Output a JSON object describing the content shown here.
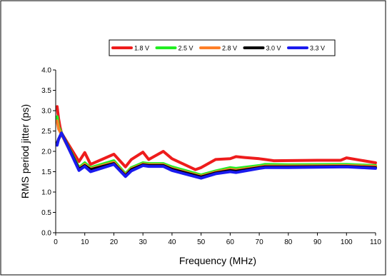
{
  "chart_data": {
    "type": "line",
    "title": "",
    "xlabel": "Frequency (MHz)",
    "ylabel": "RMS period jitter (ps)",
    "xlim": [
      0,
      110
    ],
    "ylim": [
      0.0,
      4.0
    ],
    "xticks": [
      0,
      10,
      20,
      30,
      40,
      50,
      60,
      70,
      80,
      90,
      100,
      110
    ],
    "yticks": [
      "0.0",
      "0.5",
      "1.0",
      "1.5",
      "2.0",
      "2.5",
      "3.0",
      "3.5",
      "4.0"
    ],
    "grid": false,
    "legend_position": "top",
    "series": [
      {
        "name": "1.8 V",
        "color": "#ee1c1c",
        "x": [
          0.5,
          1,
          1.5,
          2,
          8,
          10,
          12,
          20,
          24,
          26,
          30,
          32,
          37,
          40,
          48,
          50,
          55,
          60,
          62,
          65,
          70,
          72,
          75,
          90,
          98,
          100,
          110
        ],
        "y": [
          3.1,
          2.8,
          2.6,
          2.45,
          1.75,
          1.97,
          1.68,
          1.93,
          1.62,
          1.8,
          1.98,
          1.8,
          2.0,
          1.82,
          1.55,
          1.6,
          1.8,
          1.82,
          1.87,
          1.85,
          1.82,
          1.8,
          1.77,
          1.78,
          1.78,
          1.84,
          1.72
        ]
      },
      {
        "name": "2.5 V",
        "color": "#22ee22",
        "x": [
          0.5,
          1,
          2,
          8,
          10,
          12,
          20,
          24,
          26,
          30,
          32,
          37,
          40,
          50,
          55,
          60,
          62,
          70,
          72,
          80,
          100,
          110
        ],
        "y": [
          2.85,
          2.6,
          2.45,
          1.6,
          1.72,
          1.6,
          1.77,
          1.45,
          1.6,
          1.72,
          1.7,
          1.7,
          1.62,
          1.42,
          1.52,
          1.6,
          1.58,
          1.65,
          1.68,
          1.67,
          1.68,
          1.65
        ]
      },
      {
        "name": "2.8 V",
        "color": "#ff7f27",
        "x": [
          0.5,
          1,
          2,
          8,
          10,
          12,
          20,
          24,
          26,
          30,
          32,
          37,
          40,
          50,
          55,
          60,
          62,
          70,
          72,
          80,
          100,
          110
        ],
        "y": [
          2.75,
          2.55,
          2.42,
          1.57,
          1.68,
          1.57,
          1.73,
          1.42,
          1.57,
          1.69,
          1.67,
          1.67,
          1.58,
          1.39,
          1.49,
          1.56,
          1.54,
          1.62,
          1.64,
          1.64,
          1.65,
          1.63
        ]
      },
      {
        "name": "3.0 V",
        "color": "#000000",
        "x": [
          0.5,
          1,
          2,
          8,
          10,
          12,
          20,
          24,
          26,
          30,
          32,
          37,
          40,
          50,
          55,
          60,
          62,
          70,
          72,
          80,
          100,
          110
        ],
        "y": [
          2.2,
          2.3,
          2.45,
          1.56,
          1.65,
          1.55,
          1.7,
          1.4,
          1.55,
          1.67,
          1.65,
          1.65,
          1.56,
          1.37,
          1.47,
          1.53,
          1.51,
          1.6,
          1.62,
          1.62,
          1.63,
          1.6
        ]
      },
      {
        "name": "3.3 V",
        "color": "#1a1aee",
        "x": [
          0.5,
          1,
          2,
          8,
          10,
          12,
          20,
          24,
          26,
          30,
          32,
          37,
          40,
          50,
          55,
          60,
          62,
          70,
          72,
          80,
          100,
          110
        ],
        "y": [
          2.15,
          2.3,
          2.45,
          1.53,
          1.63,
          1.5,
          1.68,
          1.38,
          1.52,
          1.65,
          1.63,
          1.63,
          1.53,
          1.34,
          1.45,
          1.5,
          1.48,
          1.58,
          1.6,
          1.6,
          1.62,
          1.58
        ]
      }
    ]
  }
}
